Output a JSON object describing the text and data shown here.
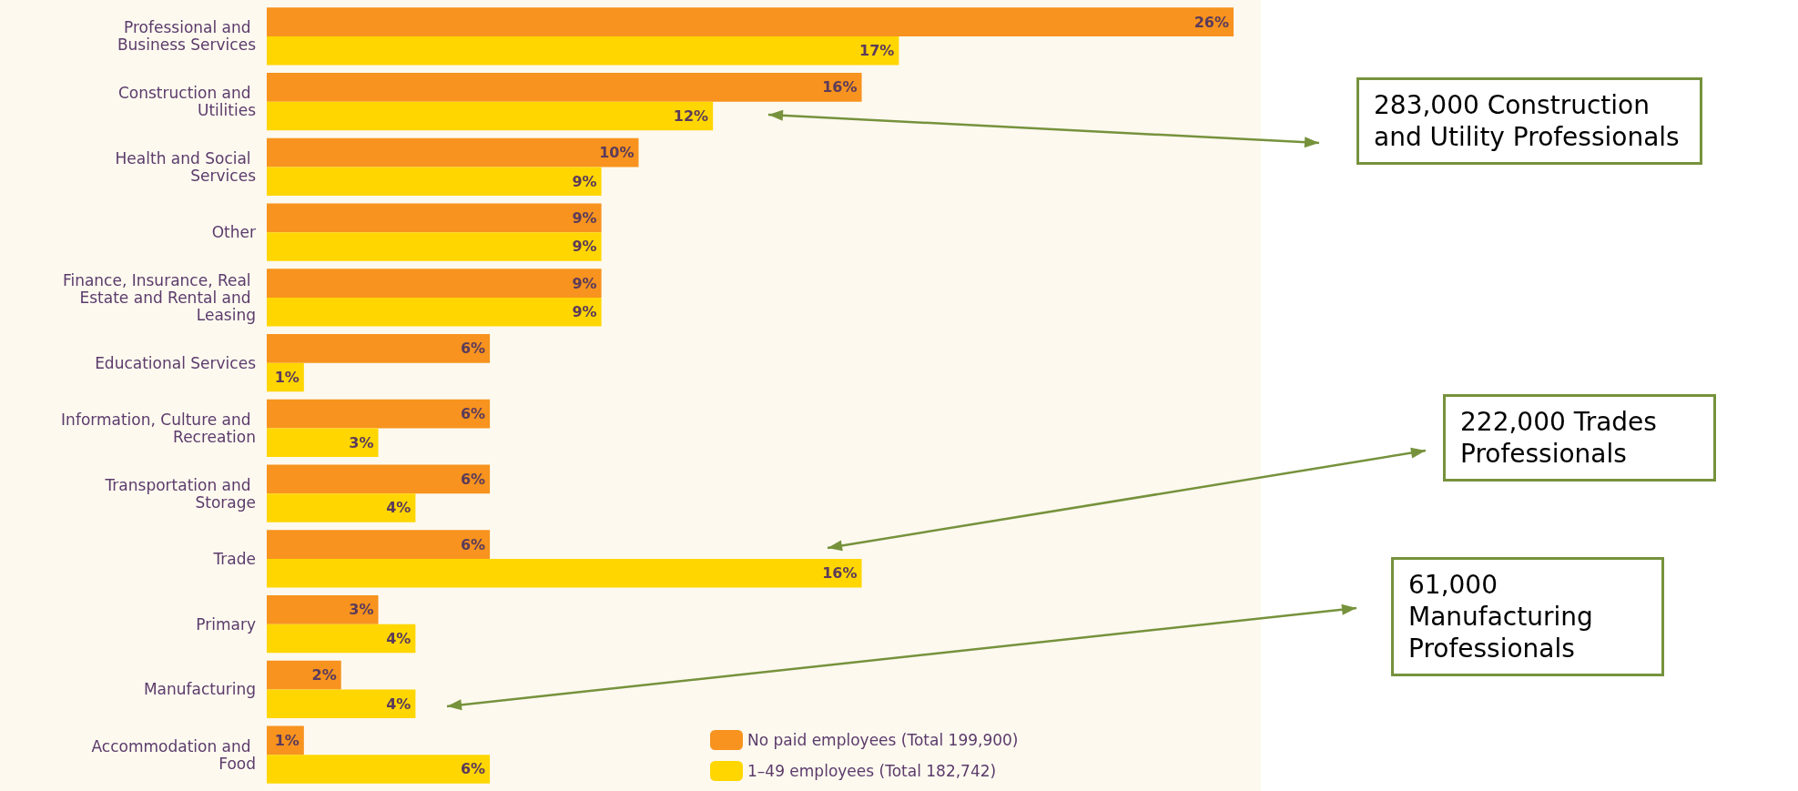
{
  "chart_data": {
    "type": "bar",
    "orientation": "horizontal",
    "categories": [
      "Professional and Business Services",
      "Construction and Utilities",
      "Health and Social Services",
      "Other",
      "Finance, Insurance, Real Estate and Rental and Leasing",
      "Educational Services",
      "Information, Culture and Recreation",
      "Transportation and Storage",
      "Trade",
      "Primary",
      "Manufacturing",
      "Accommodation and Food"
    ],
    "series": [
      {
        "name": "No paid employees (Total 199,900)",
        "color": "#f7931e",
        "values": [
          26,
          16,
          10,
          9,
          9,
          6,
          6,
          6,
          6,
          3,
          2,
          1
        ],
        "value_labels": [
          "26%",
          "16%",
          "10%",
          "9%",
          "9%",
          "6%",
          "6%",
          "6%",
          "6%",
          "3%",
          "2%",
          "1%"
        ]
      },
      {
        "name": "1–49 employees (Total 182,742)",
        "color": "#ffd600",
        "values": [
          17,
          12,
          9,
          9,
          9,
          1,
          3,
          4,
          16,
          4,
          4,
          6
        ],
        "value_labels": [
          "17%",
          "12%",
          "9%",
          "9%",
          "9%",
          "1%",
          "3%",
          "4%",
          "16%",
          "4%",
          "4%",
          "6%"
        ]
      }
    ],
    "legend": "bottom right",
    "annotations": [
      "283,000 Construction and Utility Professionals",
      "222,000 Trades Professionals",
      "61,000 Manufacturing Professionals"
    ]
  }
}
